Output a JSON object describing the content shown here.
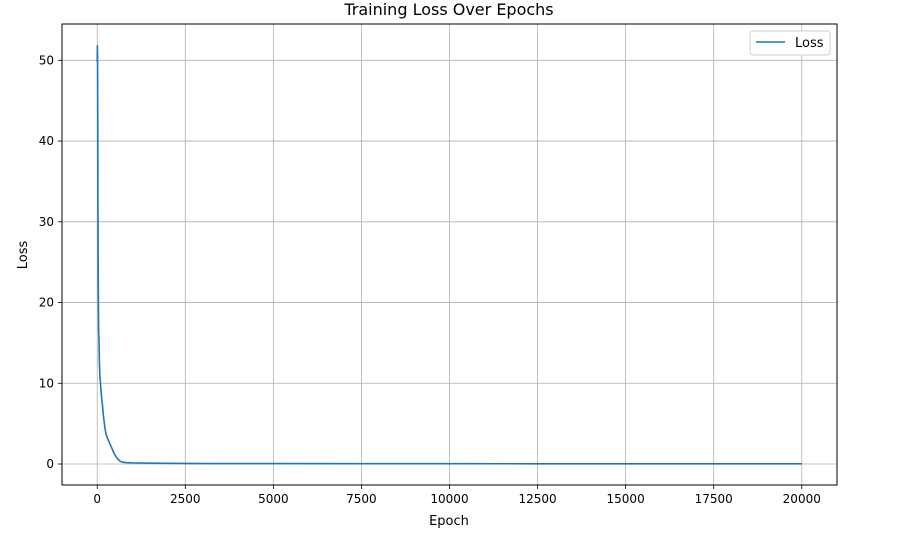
{
  "chart_data": {
    "type": "line",
    "title": "Training Loss Over Epochs",
    "xlabel": "Epoch",
    "ylabel": "Loss",
    "xlim": [
      -1000,
      21000
    ],
    "ylim": [
      -2.6,
      54.5
    ],
    "xticks": [
      0,
      2500,
      5000,
      7500,
      10000,
      12500,
      15000,
      17500,
      20000
    ],
    "yticks": [
      0,
      10,
      20,
      30,
      40,
      50
    ],
    "grid": true,
    "legend_position": "top-right",
    "series": [
      {
        "name": "Loss",
        "color": "#1f77b4",
        "points": [
          [
            0,
            49.8
          ],
          [
            5,
            51.8
          ],
          [
            10,
            50.5
          ],
          [
            15,
            42.0
          ],
          [
            20,
            32.0
          ],
          [
            30,
            22.0
          ],
          [
            40,
            16.5
          ],
          [
            50,
            15.5
          ],
          [
            60,
            12.8
          ],
          [
            75,
            11.0
          ],
          [
            100,
            9.5
          ],
          [
            125,
            8.2
          ],
          [
            150,
            7.2
          ],
          [
            175,
            6.0
          ],
          [
            200,
            5.1
          ],
          [
            225,
            4.3
          ],
          [
            250,
            3.7
          ],
          [
            300,
            3.1
          ],
          [
            350,
            2.6
          ],
          [
            400,
            2.1
          ],
          [
            450,
            1.6
          ],
          [
            500,
            1.15
          ],
          [
            550,
            0.8
          ],
          [
            600,
            0.55
          ],
          [
            650,
            0.35
          ],
          [
            700,
            0.25
          ],
          [
            800,
            0.18
          ],
          [
            1000,
            0.14
          ],
          [
            1500,
            0.1
          ],
          [
            2000,
            0.08
          ],
          [
            3000,
            0.06
          ],
          [
            5000,
            0.05
          ],
          [
            7500,
            0.04
          ],
          [
            10000,
            0.035
          ],
          [
            12500,
            0.03
          ],
          [
            15000,
            0.03
          ],
          [
            17500,
            0.025
          ],
          [
            20000,
            0.02
          ]
        ]
      }
    ]
  }
}
